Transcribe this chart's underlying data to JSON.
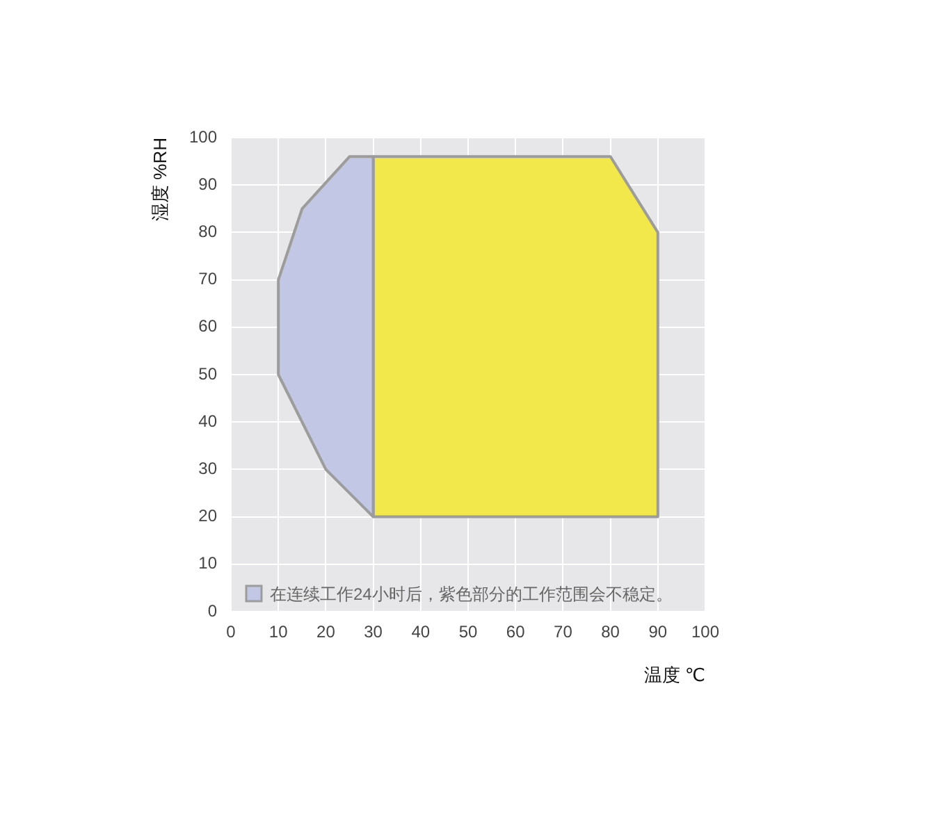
{
  "chart_data": {
    "type": "area",
    "xlabel": "温度 ℃",
    "ylabel": "湿度 %RH",
    "series": [
      {
        "name": "在连续工作24小时后，紫色部分的工作范围会不稳定。",
        "color": "#c1c7e4",
        "x": [
          30,
          20,
          10,
          10,
          15,
          25,
          30
        ],
        "values": [
          20,
          30,
          50,
          70,
          85,
          96,
          96
        ]
      },
      {
        "color": "#f3e84b",
        "x": [
          30,
          90,
          90,
          80,
          30
        ],
        "values": [
          20,
          20,
          80,
          96,
          96
        ]
      }
    ],
    "xlim": [
      0,
      100
    ],
    "xticks": [
      0,
      10,
      20,
      30,
      40,
      50,
      60,
      70,
      80,
      90,
      100
    ],
    "ylim": [
      0,
      100
    ],
    "yticks": [
      0,
      10,
      20,
      30,
      40,
      50,
      60,
      70,
      80,
      90,
      100
    ],
    "grid": true,
    "legend": "bottom left"
  }
}
